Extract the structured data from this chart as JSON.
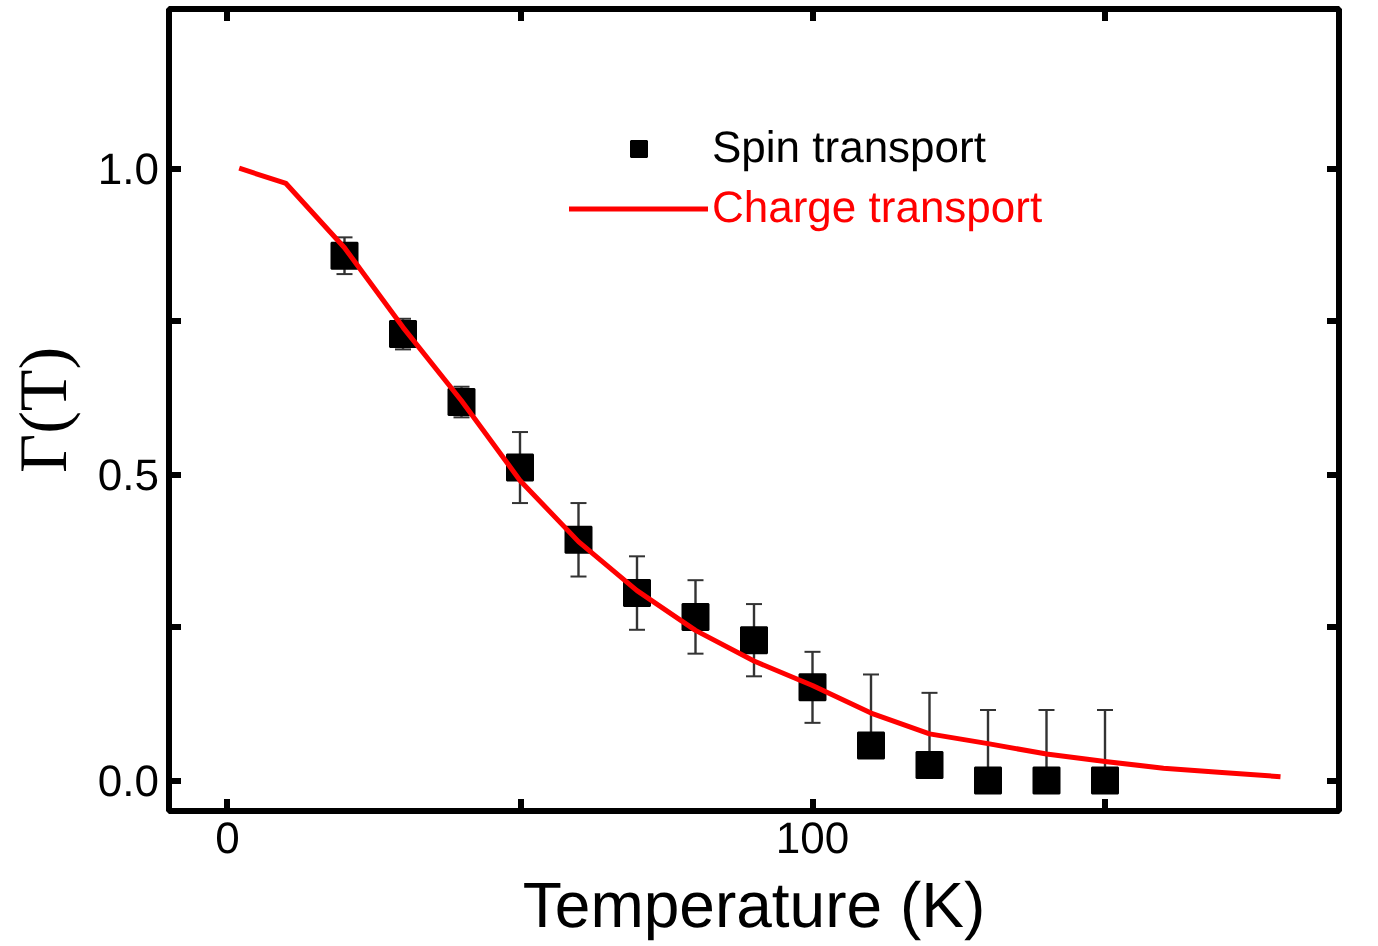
{
  "chart_data": {
    "type": "scatter",
    "xlabel": "Temperature (K)",
    "ylabel": "Γ(T)",
    "xlim": [
      -10,
      190
    ],
    "ylim": [
      -0.05,
      1.26
    ],
    "xticks": [
      0,
      {
        "value": 50,
        "label": null
      },
      100,
      {
        "value": 150,
        "label": null
      }
    ],
    "yticks": [
      {
        "value": 0,
        "label": "0.0"
      },
      {
        "value": 0.25,
        "label": null
      },
      {
        "value": 0.5,
        "label": "0.5"
      },
      {
        "value": 0.75,
        "label": null
      },
      {
        "value": 1,
        "label": "1.0"
      }
    ],
    "grid": false,
    "legend": "top right",
    "series": [
      {
        "name": "Spin transport",
        "marker": "square",
        "color": "#000000",
        "x": [
          20,
          30,
          40,
          50,
          60,
          70,
          80,
          90,
          100,
          110,
          120,
          130,
          140,
          150
        ],
        "values": [
          0.857,
          0.729,
          0.618,
          0.511,
          0.393,
          0.306,
          0.267,
          0.229,
          0.152,
          0.057,
          0.025,
          0.0,
          0.0,
          0.0
        ],
        "errors": [
          0.03,
          0.025,
          0.025,
          0.058,
          0.06,
          0.06,
          0.06,
          0.059,
          0.058,
          [
            0.057,
            0.173
          ],
          [
            0.025,
            0.143
          ],
          [
            0.0,
            0.115
          ],
          [
            0.0,
            0.115
          ],
          [
            0.0,
            0.115
          ]
        ]
      },
      {
        "name": "Charge transport",
        "type": "line",
        "color": "#ff0000",
        "x": [
          2,
          10,
          20,
          30,
          40,
          50,
          60,
          70,
          80,
          90,
          100,
          110,
          120,
          130,
          140,
          150,
          160,
          170,
          180
        ],
        "values": [
          1.0,
          0.975,
          0.87,
          0.74,
          0.62,
          0.49,
          0.39,
          0.31,
          0.245,
          0.195,
          0.155,
          0.11,
          0.076,
          0.06,
          0.043,
          0.031,
          0.02,
          0.013,
          0.006
        ]
      }
    ]
  }
}
